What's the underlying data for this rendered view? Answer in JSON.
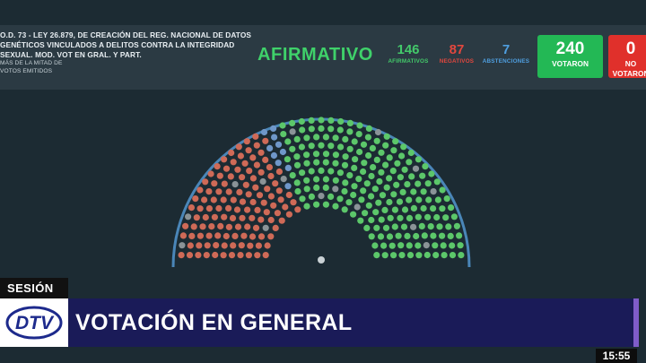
{
  "motion": {
    "line1": "O.D. 73 - LEY 26.879, DE CREACIÓN DEL REG. NACIONAL DE DATOS",
    "line2": "GENÉTICOS VINCULADOS A DELITOS CONTRA LA INTEGRIDAD",
    "line3": "SEXUAL. MOD. VOT EN GRAL. Y PART.",
    "line4": "MÁS DE LA MITAD DE",
    "line5": "VOTOS EMITIDOS"
  },
  "result": {
    "label": "AFIRMATIVO",
    "color": "#3fd16a"
  },
  "counts": {
    "afirmativos": {
      "value": "146",
      "label": "AFIRMATIVOS",
      "color": "#43c96a"
    },
    "negativos": {
      "value": "87",
      "label": "NEGATIVOS",
      "color": "#e2473e"
    },
    "abstenciones": {
      "value": "7",
      "label": "ABSTENCIONES",
      "color": "#4f9fe0"
    }
  },
  "votaron": {
    "value": "240",
    "label": "VOTARON",
    "color": "#23b855"
  },
  "no_votaron": {
    "value": "0",
    "label": "NO VOTARON",
    "color": "#e0302b"
  },
  "seat_colors": {
    "afirmativo": "#5cc76a",
    "negativo": "#cf6a57",
    "abstencion": "#6f97c9",
    "ausente": "#8a9397",
    "outline": "#4a86b8"
  },
  "lower_third": {
    "section": "SESIÓN",
    "title": "VOTACIÓN EN GENERAL",
    "logo_text": "DTV"
  },
  "clock": "15:55"
}
